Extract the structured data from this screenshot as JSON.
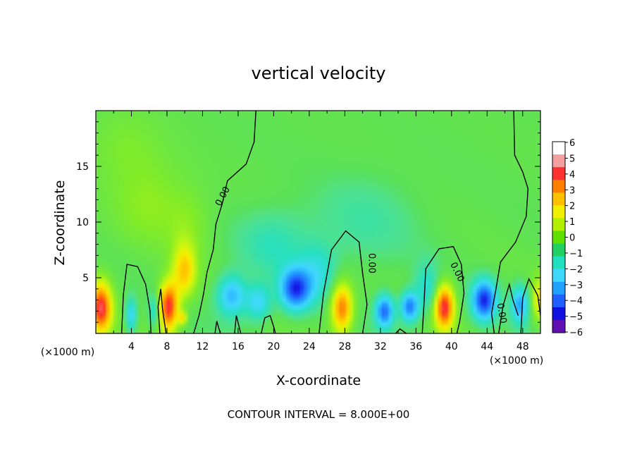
{
  "chart_data": {
    "type": "heatmap",
    "title": "vertical velocity",
    "xlabel": "X-coordinate",
    "ylabel": "Z-coordinate",
    "x_units": "(×1000 m)",
    "y_units": "(×1000 m)",
    "xlim": [
      0,
      50
    ],
    "ylim": [
      0,
      20
    ],
    "x_ticks": [
      "4",
      "8",
      "12",
      "16",
      "20",
      "24",
      "28",
      "32",
      "36",
      "40",
      "44",
      "48"
    ],
    "y_ticks": [
      "5",
      "10",
      "15"
    ],
    "colorbar": {
      "range": [
        -6,
        6
      ],
      "ticks": [
        "6",
        "5",
        "4",
        "3",
        "2",
        "1",
        "0",
        "−1",
        "−2",
        "−3",
        "−4",
        "−5",
        "−6"
      ],
      "colors": [
        "#ffffff",
        "#f4a0a0",
        "#ff3030",
        "#ff8000",
        "#ffc000",
        "#f0f000",
        "#b0f000",
        "#60e000",
        "#20d060",
        "#20e0c0",
        "#40d8ff",
        "#20a0ff",
        "#2060ff",
        "#1010e0",
        "#6010b0"
      ]
    },
    "contour_label": "0.00",
    "contour_interval_text": "CONTOUR INTERVAL = 8.000E+00",
    "features": [
      {
        "x": 0.6,
        "z": 2.3,
        "w": 4.5,
        "r": 1.2,
        "h": 2.3
      },
      {
        "x": 8.2,
        "z": 2.4,
        "w": 4.6,
        "r": 1.1,
        "h": 2.2
      },
      {
        "x": 10.0,
        "z": 5.6,
        "w": 2.6,
        "r": 1.3,
        "h": 2.4
      },
      {
        "x": 9.8,
        "z": 1.4,
        "w": 2.0,
        "r": 0.5,
        "h": 0.6
      },
      {
        "x": 27.7,
        "z": 2.3,
        "w": 3.8,
        "r": 1.2,
        "h": 2.2
      },
      {
        "x": 39.2,
        "z": 2.4,
        "w": 4.6,
        "r": 1.1,
        "h": 2.0
      },
      {
        "x": 49.8,
        "z": 3.0,
        "w": 2.0,
        "r": 0.7,
        "h": 2.0
      },
      {
        "x": 4.0,
        "z": 1.6,
        "w": -2.2,
        "r": 0.6,
        "h": 1.5
      },
      {
        "x": 6.6,
        "z": 2.0,
        "w": -1.6,
        "r": 0.6,
        "h": 1.4
      },
      {
        "x": 15.3,
        "z": 3.4,
        "w": -2.8,
        "r": 1.6,
        "h": 1.8
      },
      {
        "x": 18.3,
        "z": 2.8,
        "w": -2.2,
        "r": 1.4,
        "h": 1.6
      },
      {
        "x": 22.5,
        "z": 4.0,
        "w": -4.6,
        "r": 1.7,
        "h": 1.8
      },
      {
        "x": 25.0,
        "z": 5.5,
        "w": -1.4,
        "r": 2.0,
        "h": 2.4
      },
      {
        "x": 32.5,
        "z": 2.0,
        "w": -4.0,
        "r": 1.0,
        "h": 1.4
      },
      {
        "x": 35.3,
        "z": 2.4,
        "w": -3.8,
        "r": 1.0,
        "h": 1.3
      },
      {
        "x": 37.3,
        "z": 4.0,
        "w": -1.5,
        "r": 1.4,
        "h": 2.2
      },
      {
        "x": 43.7,
        "z": 3.0,
        "w": -4.8,
        "r": 1.3,
        "h": 1.7
      },
      {
        "x": 47.7,
        "z": 2.6,
        "w": -3.0,
        "r": 0.9,
        "h": 1.6
      },
      {
        "x": 20.0,
        "z": 8.0,
        "w": -1.0,
        "r": 4.0,
        "h": 3.0
      },
      {
        "x": 30.0,
        "z": 10.0,
        "w": -0.7,
        "r": 6.0,
        "h": 4.0
      },
      {
        "x": 6.0,
        "z": 12.0,
        "w": 0.8,
        "r": 4.0,
        "h": 4.0
      },
      {
        "x": 3.0,
        "z": 17.0,
        "w": 0.5,
        "r": 4.0,
        "h": 3.0
      },
      {
        "x": 10.5,
        "z": 10.0,
        "w": 0.6,
        "r": 2.5,
        "h": 3.0
      }
    ],
    "zero_contours": [
      [
        [
          18.0,
          20.0
        ],
        [
          17.8,
          17.2
        ],
        [
          16.9,
          15.2
        ],
        [
          14.8,
          13.7
        ],
        [
          14.2,
          11.6
        ],
        [
          13.5,
          9.8
        ],
        [
          13.2,
          7.5
        ],
        [
          12.5,
          5.5
        ],
        [
          12.1,
          3.5
        ],
        [
          11.6,
          1.6
        ],
        [
          11.0,
          0.0
        ]
      ],
      [
        [
          2.9,
          0.0
        ],
        [
          3.1,
          3.5
        ],
        [
          3.5,
          6.2
        ],
        [
          4.7,
          6.0
        ],
        [
          5.6,
          4.4
        ],
        [
          6.1,
          2.0
        ],
        [
          6.2,
          0.0
        ]
      ],
      [
        [
          7.2,
          0.0
        ],
        [
          7.0,
          2.4
        ],
        [
          7.3,
          4.0
        ],
        [
          7.5,
          2.2
        ],
        [
          7.9,
          0.0
        ]
      ],
      [
        [
          25.1,
          0.0
        ],
        [
          25.6,
          3.6
        ],
        [
          26.5,
          7.5
        ],
        [
          28.1,
          9.2
        ],
        [
          29.6,
          8.2
        ],
        [
          30.0,
          5.4
        ],
        [
          30.5,
          2.6
        ],
        [
          30.0,
          0.0
        ]
      ],
      [
        [
          36.7,
          0.0
        ],
        [
          36.9,
          2.6
        ],
        [
          37.1,
          5.8
        ],
        [
          38.6,
          7.6
        ],
        [
          40.2,
          7.8
        ],
        [
          41.1,
          6.2
        ],
        [
          41.4,
          3.6
        ],
        [
          40.9,
          1.0
        ],
        [
          40.6,
          0.0
        ]
      ],
      [
        [
          47.0,
          20.0
        ],
        [
          47.1,
          16.0
        ],
        [
          48.0,
          14.5
        ],
        [
          48.6,
          13.0
        ],
        [
          48.4,
          10.5
        ],
        [
          47.2,
          8.2
        ],
        [
          45.5,
          6.4
        ],
        [
          45.0,
          4.0
        ],
        [
          44.5,
          1.8
        ],
        [
          44.8,
          0.0
        ]
      ],
      [
        [
          45.3,
          0.0
        ],
        [
          45.8,
          2.5
        ],
        [
          46.5,
          4.4
        ],
        [
          46.9,
          3.0
        ],
        [
          47.5,
          1.6
        ]
      ],
      [
        [
          47.8,
          0.0
        ],
        [
          48.0,
          3.2
        ],
        [
          48.7,
          4.9
        ],
        [
          49.7,
          3.4
        ],
        [
          50.0,
          1.6
        ]
      ],
      [
        [
          13.4,
          0.0
        ],
        [
          13.6,
          1.1
        ],
        [
          14.0,
          0.0
        ]
      ],
      [
        [
          15.6,
          0.0
        ],
        [
          15.8,
          1.6
        ],
        [
          16.3,
          0.0
        ]
      ],
      [
        [
          18.6,
          0.0
        ],
        [
          19.0,
          1.4
        ],
        [
          19.6,
          1.6
        ],
        [
          20.0,
          0.6
        ],
        [
          20.2,
          0.0
        ]
      ],
      [
        [
          33.7,
          0.0
        ],
        [
          34.2,
          0.4
        ],
        [
          34.9,
          0.0
        ]
      ]
    ]
  }
}
